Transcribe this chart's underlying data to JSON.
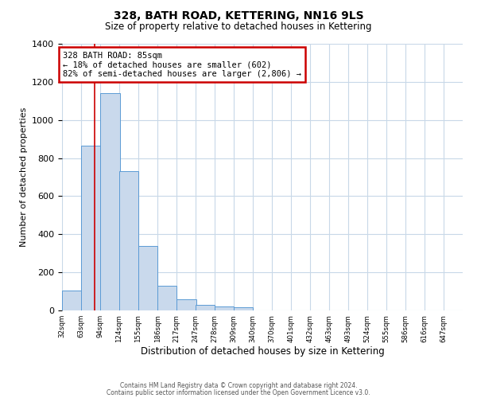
{
  "title": "328, BATH ROAD, KETTERING, NN16 9LS",
  "subtitle": "Size of property relative to detached houses in Kettering",
  "xlabel": "Distribution of detached houses by size in Kettering",
  "ylabel": "Number of detached properties",
  "bin_labels": [
    "32sqm",
    "63sqm",
    "94sqm",
    "124sqm",
    "155sqm",
    "186sqm",
    "217sqm",
    "247sqm",
    "278sqm",
    "309sqm",
    "340sqm",
    "370sqm",
    "401sqm",
    "432sqm",
    "463sqm",
    "493sqm",
    "524sqm",
    "555sqm",
    "586sqm",
    "616sqm",
    "647sqm"
  ],
  "bin_left_edges": [
    32,
    63,
    94,
    124,
    155,
    186,
    217,
    247,
    278,
    309,
    340,
    370,
    401,
    432,
    463,
    493,
    524,
    555,
    586,
    616,
    647
  ],
  "bin_width": 31,
  "bar_values": [
    105,
    865,
    1140,
    730,
    340,
    130,
    60,
    30,
    20,
    15,
    0,
    0,
    0,
    0,
    0,
    0,
    0,
    0,
    0,
    0
  ],
  "bar_color": "#c9d9ec",
  "bar_edge_color": "#5b9bd5",
  "property_line_x": 85,
  "property_line_color": "#cc0000",
  "annotation_text": "328 BATH ROAD: 85sqm\n← 18% of detached houses are smaller (602)\n82% of semi-detached houses are larger (2,806) →",
  "annotation_box_color": "#ffffff",
  "annotation_box_edge_color": "#cc0000",
  "ylim": [
    0,
    1400
  ],
  "yticks": [
    0,
    200,
    400,
    600,
    800,
    1000,
    1200,
    1400
  ],
  "footer_line1": "Contains HM Land Registry data © Crown copyright and database right 2024.",
  "footer_line2": "Contains public sector information licensed under the Open Government Licence v3.0.",
  "background_color": "#ffffff",
  "grid_color": "#c8d8e8"
}
